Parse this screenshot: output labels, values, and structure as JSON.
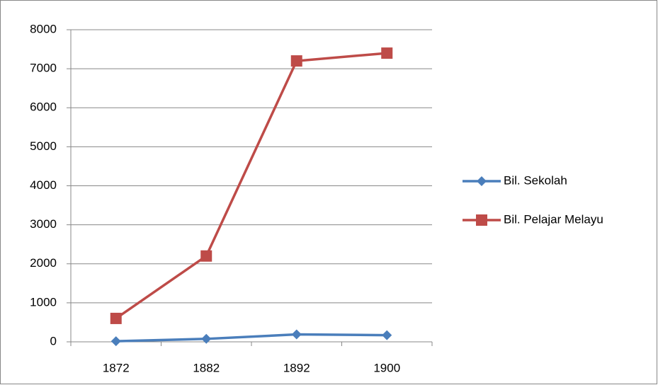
{
  "chart_data": {
    "type": "line",
    "categories": [
      "1872",
      "1882",
      "1892",
      "1900"
    ],
    "series": [
      {
        "name": "Bil. Sekolah",
        "color": "#4a7ebb",
        "marker": "diamond",
        "values": [
          16,
          76,
          190,
          170
        ]
      },
      {
        "name": "Bil. Pelajar Melayu",
        "color": "#be4b48",
        "marker": "square",
        "values": [
          600,
          2200,
          7200,
          7400
        ]
      }
    ],
    "ylim": [
      0,
      8000
    ],
    "yticks": [
      0,
      1000,
      2000,
      3000,
      4000,
      5000,
      6000,
      7000,
      8000
    ],
    "grid": true,
    "legend": "right"
  }
}
